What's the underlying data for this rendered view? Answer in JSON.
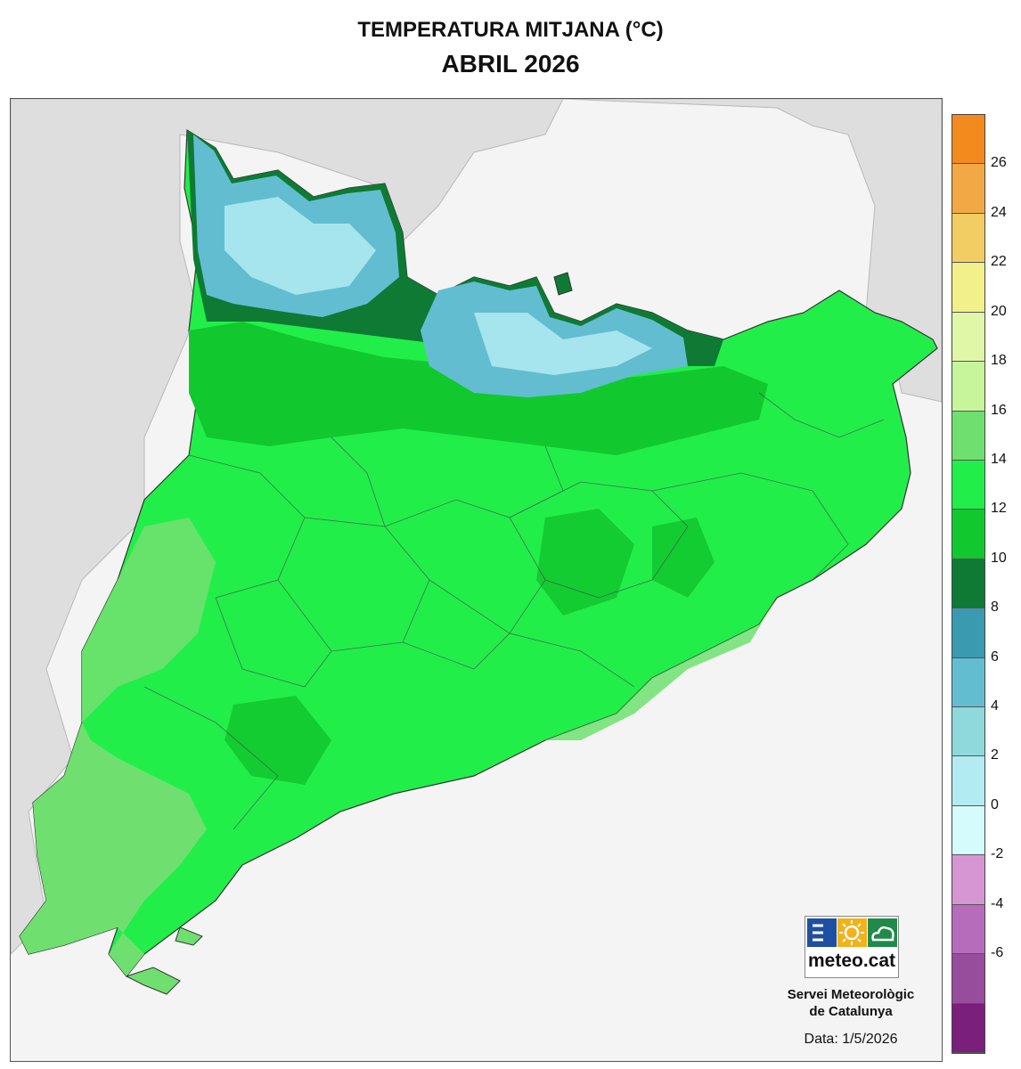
{
  "header": {
    "title": "TEMPERATURA MITJANA (°C)",
    "subtitle": "ABRIL 2026"
  },
  "legend": {
    "tick_labels": [
      "26",
      "24",
      "22",
      "20",
      "18",
      "16",
      "14",
      "12",
      "10",
      "8",
      "6",
      "4",
      "2",
      "0",
      "-2",
      "-4",
      "-6"
    ],
    "colors": [
      "#f28a1e",
      "#f2a845",
      "#f2cd63",
      "#f2f08a",
      "#e1f7a8",
      "#c6f59c",
      "#6fe06f",
      "#22ee4a",
      "#12c82f",
      "#0e7a33",
      "#3a9ab0",
      "#63bdd1",
      "#8fd8dc",
      "#b2ecf2",
      "#d6fbfd",
      "#d696d4",
      "#b66cbb",
      "#984c9c",
      "#7a1f7c"
    ]
  },
  "colors": {
    "sea": "#f4f4f4",
    "land_outside": "#e2e2e2",
    "low_temp": "#8fd8dc",
    "mid_temp": "#22ee4a",
    "warm_temp": "#6fe06f",
    "cool_temp": "#12c82f"
  },
  "logo": {
    "text": "meteo.cat",
    "icons": [
      "waves-icon",
      "sun-icon",
      "cloud-icon"
    ]
  },
  "organization": {
    "line1": "Servei Meteorològic",
    "line2": "de Catalunya"
  },
  "date": "Data: 1/5/2026"
}
